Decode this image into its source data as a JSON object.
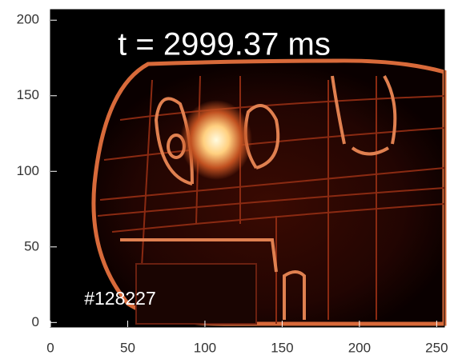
{
  "chart_data": {
    "type": "image",
    "annotations": [
      "t = 2999.37 ms",
      "#128227"
    ],
    "xlim": [
      0,
      255
    ],
    "ylim": [
      -3,
      207
    ],
    "xticks": [
      0,
      50,
      100,
      150,
      200,
      250
    ],
    "yticks": [
      0,
      50,
      100,
      150,
      200
    ]
  }
}
